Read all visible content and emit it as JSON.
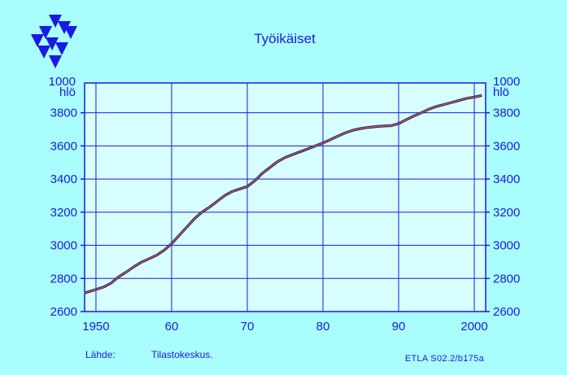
{
  "chart_data": {
    "type": "line",
    "title": "Työikäiset",
    "unit_label_top": "1000",
    "unit_label_bottom": "hlö",
    "x_tick_labels": [
      "1950",
      "60",
      "70",
      "80",
      "90",
      "2000"
    ],
    "x_ticks": [
      1950,
      1960,
      1970,
      1980,
      1990,
      2000
    ],
    "y_ticks": [
      2600,
      2800,
      3000,
      3200,
      3400,
      3600,
      3800
    ],
    "xlim": [
      1948.5,
      2001.5
    ],
    "ylim": [
      2600,
      3980
    ],
    "grid": true,
    "colors": {
      "background": "#a9fdfd",
      "plot_background": "#d8ffff",
      "axis": "#1a1ae0",
      "line_outer": "#202040",
      "line_inner": "#d06080"
    },
    "series": [
      {
        "x": [
          1948.5,
          1950,
          1951,
          1952,
          1953,
          1954,
          1955,
          1956,
          1957,
          1958,
          1959,
          1960,
          1961,
          1962,
          1963,
          1964,
          1965,
          1966,
          1967,
          1968,
          1969,
          1970,
          1971,
          1972,
          1973,
          1974,
          1975,
          1976,
          1977,
          1978,
          1979,
          1980,
          1981,
          1982,
          1983,
          1984,
          1985,
          1986,
          1987,
          1988,
          1989,
          1990,
          1991,
          1992,
          1993,
          1994,
          1995,
          1996,
          1997,
          1998,
          1999,
          2000,
          2001
        ],
        "values": [
          2712,
          2733,
          2748,
          2772,
          2810,
          2838,
          2870,
          2898,
          2918,
          2940,
          2970,
          3010,
          3060,
          3110,
          3160,
          3200,
          3230,
          3265,
          3300,
          3325,
          3340,
          3355,
          3390,
          3435,
          3470,
          3505,
          3530,
          3548,
          3565,
          3582,
          3600,
          3618,
          3638,
          3660,
          3680,
          3695,
          3705,
          3712,
          3717,
          3720,
          3722,
          3735,
          3758,
          3780,
          3800,
          3822,
          3838,
          3850,
          3862,
          3875,
          3887,
          3895,
          3905
        ]
      }
    ]
  },
  "footer": {
    "source_label": "Lähde:",
    "source_value": "Tilastokeskus.",
    "code": "ETLA S02.2/b175a"
  }
}
